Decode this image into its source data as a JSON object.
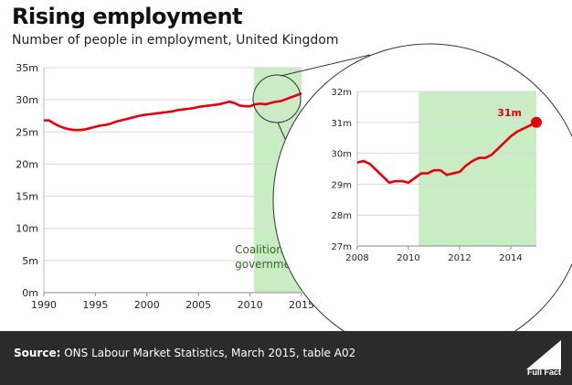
{
  "title": "Rising employment",
  "subtitle": "Number of people in employment, United Kingdom",
  "footer": {
    "source_label": "Source:",
    "source_text": "ONS Labour Market Statistics, March 2015, table A02",
    "brand": "Full Fact"
  },
  "colors": {
    "line": "#e8000b",
    "shade": "#c9ecc4",
    "annotation": "#2a6e1f",
    "grid": "#d9d9d9",
    "footer_bg": "#2b2b2b"
  },
  "chart_data": [
    {
      "type": "line",
      "ylim": [
        0,
        35
      ],
      "xlim": [
        1990,
        2015
      ],
      "yticks": [
        "0m",
        "5m",
        "10m",
        "15m",
        "20m",
        "25m",
        "30m",
        "35m"
      ],
      "xticks": [
        "1990",
        "1995",
        "2000",
        "2005",
        "2010",
        "2015"
      ],
      "grid": true,
      "shaded_region": {
        "from": 2010.4,
        "to": 2015,
        "label_line1": "Coalition",
        "label_line2": "government"
      },
      "series": [
        {
          "x": [
            1990,
            1990.5,
            1991,
            1991.5,
            1992,
            1992.5,
            1993,
            1993.5,
            1994,
            1994.5,
            1995,
            1995.5,
            1996,
            1996.5,
            1997,
            1997.5,
            1998,
            1998.5,
            1999,
            1999.5,
            2000,
            2000.5,
            2001,
            2001.5,
            2002,
            2002.5,
            2003,
            2003.5,
            2004,
            2004.5,
            2005,
            2005.5,
            2006,
            2006.5,
            2007,
            2007.5,
            2008,
            2008.5,
            2009,
            2009.5,
            2010,
            2010.5,
            2011,
            2011.5,
            2012,
            2012.5,
            2013,
            2013.5,
            2014,
            2014.5,
            2015
          ],
          "values": [
            26.8,
            26.8,
            26.3,
            25.9,
            25.6,
            25.4,
            25.3,
            25.3,
            25.4,
            25.6,
            25.8,
            26.0,
            26.1,
            26.3,
            26.6,
            26.8,
            27.0,
            27.2,
            27.4,
            27.6,
            27.7,
            27.8,
            27.9,
            28.0,
            28.1,
            28.2,
            28.4,
            28.5,
            28.6,
            28.7,
            28.9,
            29.0,
            29.1,
            29.2,
            29.3,
            29.5,
            29.7,
            29.5,
            29.1,
            29.0,
            29.0,
            29.3,
            29.4,
            29.3,
            29.5,
            29.7,
            29.8,
            30.1,
            30.4,
            30.7,
            31.0
          ]
        }
      ]
    },
    {
      "type": "line",
      "ylim": [
        27,
        32
      ],
      "xlim": [
        2008,
        2015
      ],
      "yticks": [
        "27m",
        "28m",
        "29m",
        "30m",
        "31m",
        "32m"
      ],
      "xticks": [
        "2008",
        "2010",
        "2012",
        "2014"
      ],
      "grid": true,
      "shaded_region": {
        "from": 2010.4,
        "to": 2015
      },
      "end_label": "31m",
      "series": [
        {
          "x": [
            2008,
            2008.25,
            2008.5,
            2008.75,
            2009,
            2009.25,
            2009.5,
            2009.75,
            2010,
            2010.25,
            2010.5,
            2010.75,
            2011,
            2011.25,
            2011.5,
            2011.75,
            2012,
            2012.25,
            2012.5,
            2012.75,
            2013,
            2013.25,
            2013.5,
            2013.75,
            2014,
            2014.25,
            2014.5,
            2014.75,
            2015
          ],
          "values": [
            29.7,
            29.75,
            29.65,
            29.45,
            29.25,
            29.05,
            29.1,
            29.1,
            29.05,
            29.2,
            29.35,
            29.35,
            29.45,
            29.45,
            29.3,
            29.35,
            29.4,
            29.6,
            29.75,
            29.85,
            29.85,
            29.95,
            30.15,
            30.35,
            30.55,
            30.7,
            30.8,
            30.9,
            31.0
          ]
        }
      ]
    }
  ]
}
